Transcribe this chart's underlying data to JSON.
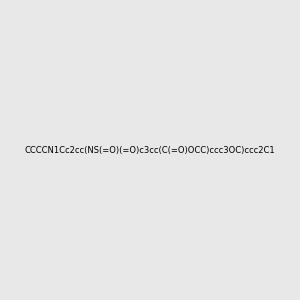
{
  "smiles": "CCCCN1Cc2cc(NS(=O)(=O)c3cc(C(=O)OCC)ccc3OC)ccc2C1",
  "bg_color": "#e8e8e8",
  "title": "",
  "image_size": 300
}
